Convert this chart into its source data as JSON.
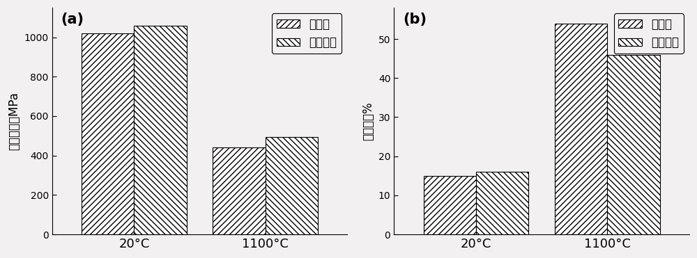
{
  "chart_a": {
    "title": "(a)",
    "ylabel": "抗拉强度，MPa",
    "categories": [
      "20°C",
      "1100°C"
    ],
    "series1_label": "充氯气",
    "series2_label": "未充氯气",
    "series1_values": [
      1020,
      440
    ],
    "series2_values": [
      1060,
      495
    ],
    "ylim": [
      0,
      1150
    ],
    "yticks": [
      0,
      200,
      400,
      600,
      800,
      1000
    ],
    "hatch1": "////",
    "hatch2": "\\\\\\\\",
    "bar_color": "white",
    "edge_color": "black"
  },
  "chart_b": {
    "title": "(b)",
    "ylabel": "延伸率，%",
    "categories": [
      "20°C",
      "1100°C"
    ],
    "series1_label": "充氯气",
    "series2_label": "未充氯气",
    "series1_values": [
      15,
      54
    ],
    "series2_values": [
      16,
      46
    ],
    "ylim": [
      0,
      58
    ],
    "yticks": [
      0,
      10,
      20,
      30,
      40,
      50
    ],
    "hatch1": "////",
    "hatch2": "\\\\\\\\",
    "bar_color": "white",
    "edge_color": "black"
  },
  "figsize": [
    10.0,
    3.71
  ],
  "dpi": 100,
  "background_color": "#f2f0f0",
  "bar_width": 0.32,
  "group_positions": [
    0.3,
    1.1
  ]
}
